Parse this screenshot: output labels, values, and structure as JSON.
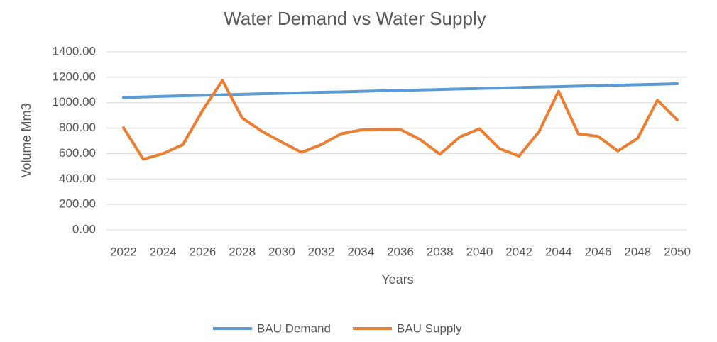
{
  "chart_data": {
    "type": "line",
    "title": "Water Demand vs Water Supply",
    "x_label": "Years",
    "y_label": "Volume Mm3",
    "x": [
      2022,
      2023,
      2024,
      2025,
      2026,
      2027,
      2028,
      2029,
      2030,
      2031,
      2032,
      2033,
      2034,
      2035,
      2036,
      2037,
      2038,
      2039,
      2040,
      2041,
      2042,
      2043,
      2044,
      2045,
      2046,
      2047,
      2048,
      2049,
      2050
    ],
    "series": [
      {
        "name": "BAU Demand",
        "color": "#5b9bd5",
        "values": [
          1040,
          1045,
          1050,
          1054,
          1058,
          1062,
          1066,
          1070,
          1074,
          1078,
          1082,
          1085,
          1089,
          1093,
          1097,
          1100,
          1104,
          1108,
          1112,
          1115,
          1119,
          1123,
          1126,
          1130,
          1134,
          1138,
          1141,
          1145,
          1149
        ]
      },
      {
        "name": "BAU Supply",
        "color": "#ed7d31",
        "values": [
          803,
          555,
          600,
          670,
          940,
          1175,
          880,
          775,
          690,
          610,
          670,
          755,
          785,
          790,
          790,
          710,
          595,
          730,
          795,
          640,
          580,
          770,
          1090,
          755,
          735,
          620,
          720,
          1020,
          865
        ]
      }
    ],
    "xlim": [
      2022,
      2050
    ],
    "xticks": [
      2022,
      2024,
      2026,
      2028,
      2030,
      2032,
      2034,
      2036,
      2038,
      2040,
      2042,
      2044,
      2046,
      2048,
      2050
    ],
    "ylim": [
      0,
      1400
    ],
    "yticks": [
      {
        "value": 0,
        "label": "0.00"
      },
      {
        "value": 200,
        "label": "200.00"
      },
      {
        "value": 400,
        "label": "400.00"
      },
      {
        "value": 600,
        "label": "600.00"
      },
      {
        "value": 800,
        "label": "800.00"
      },
      {
        "value": 1000,
        "label": "1000.00"
      },
      {
        "value": 1200,
        "label": "1200.00"
      },
      {
        "value": 1400,
        "label": "1400.00"
      }
    ],
    "grid": true,
    "legend": "bottom"
  }
}
